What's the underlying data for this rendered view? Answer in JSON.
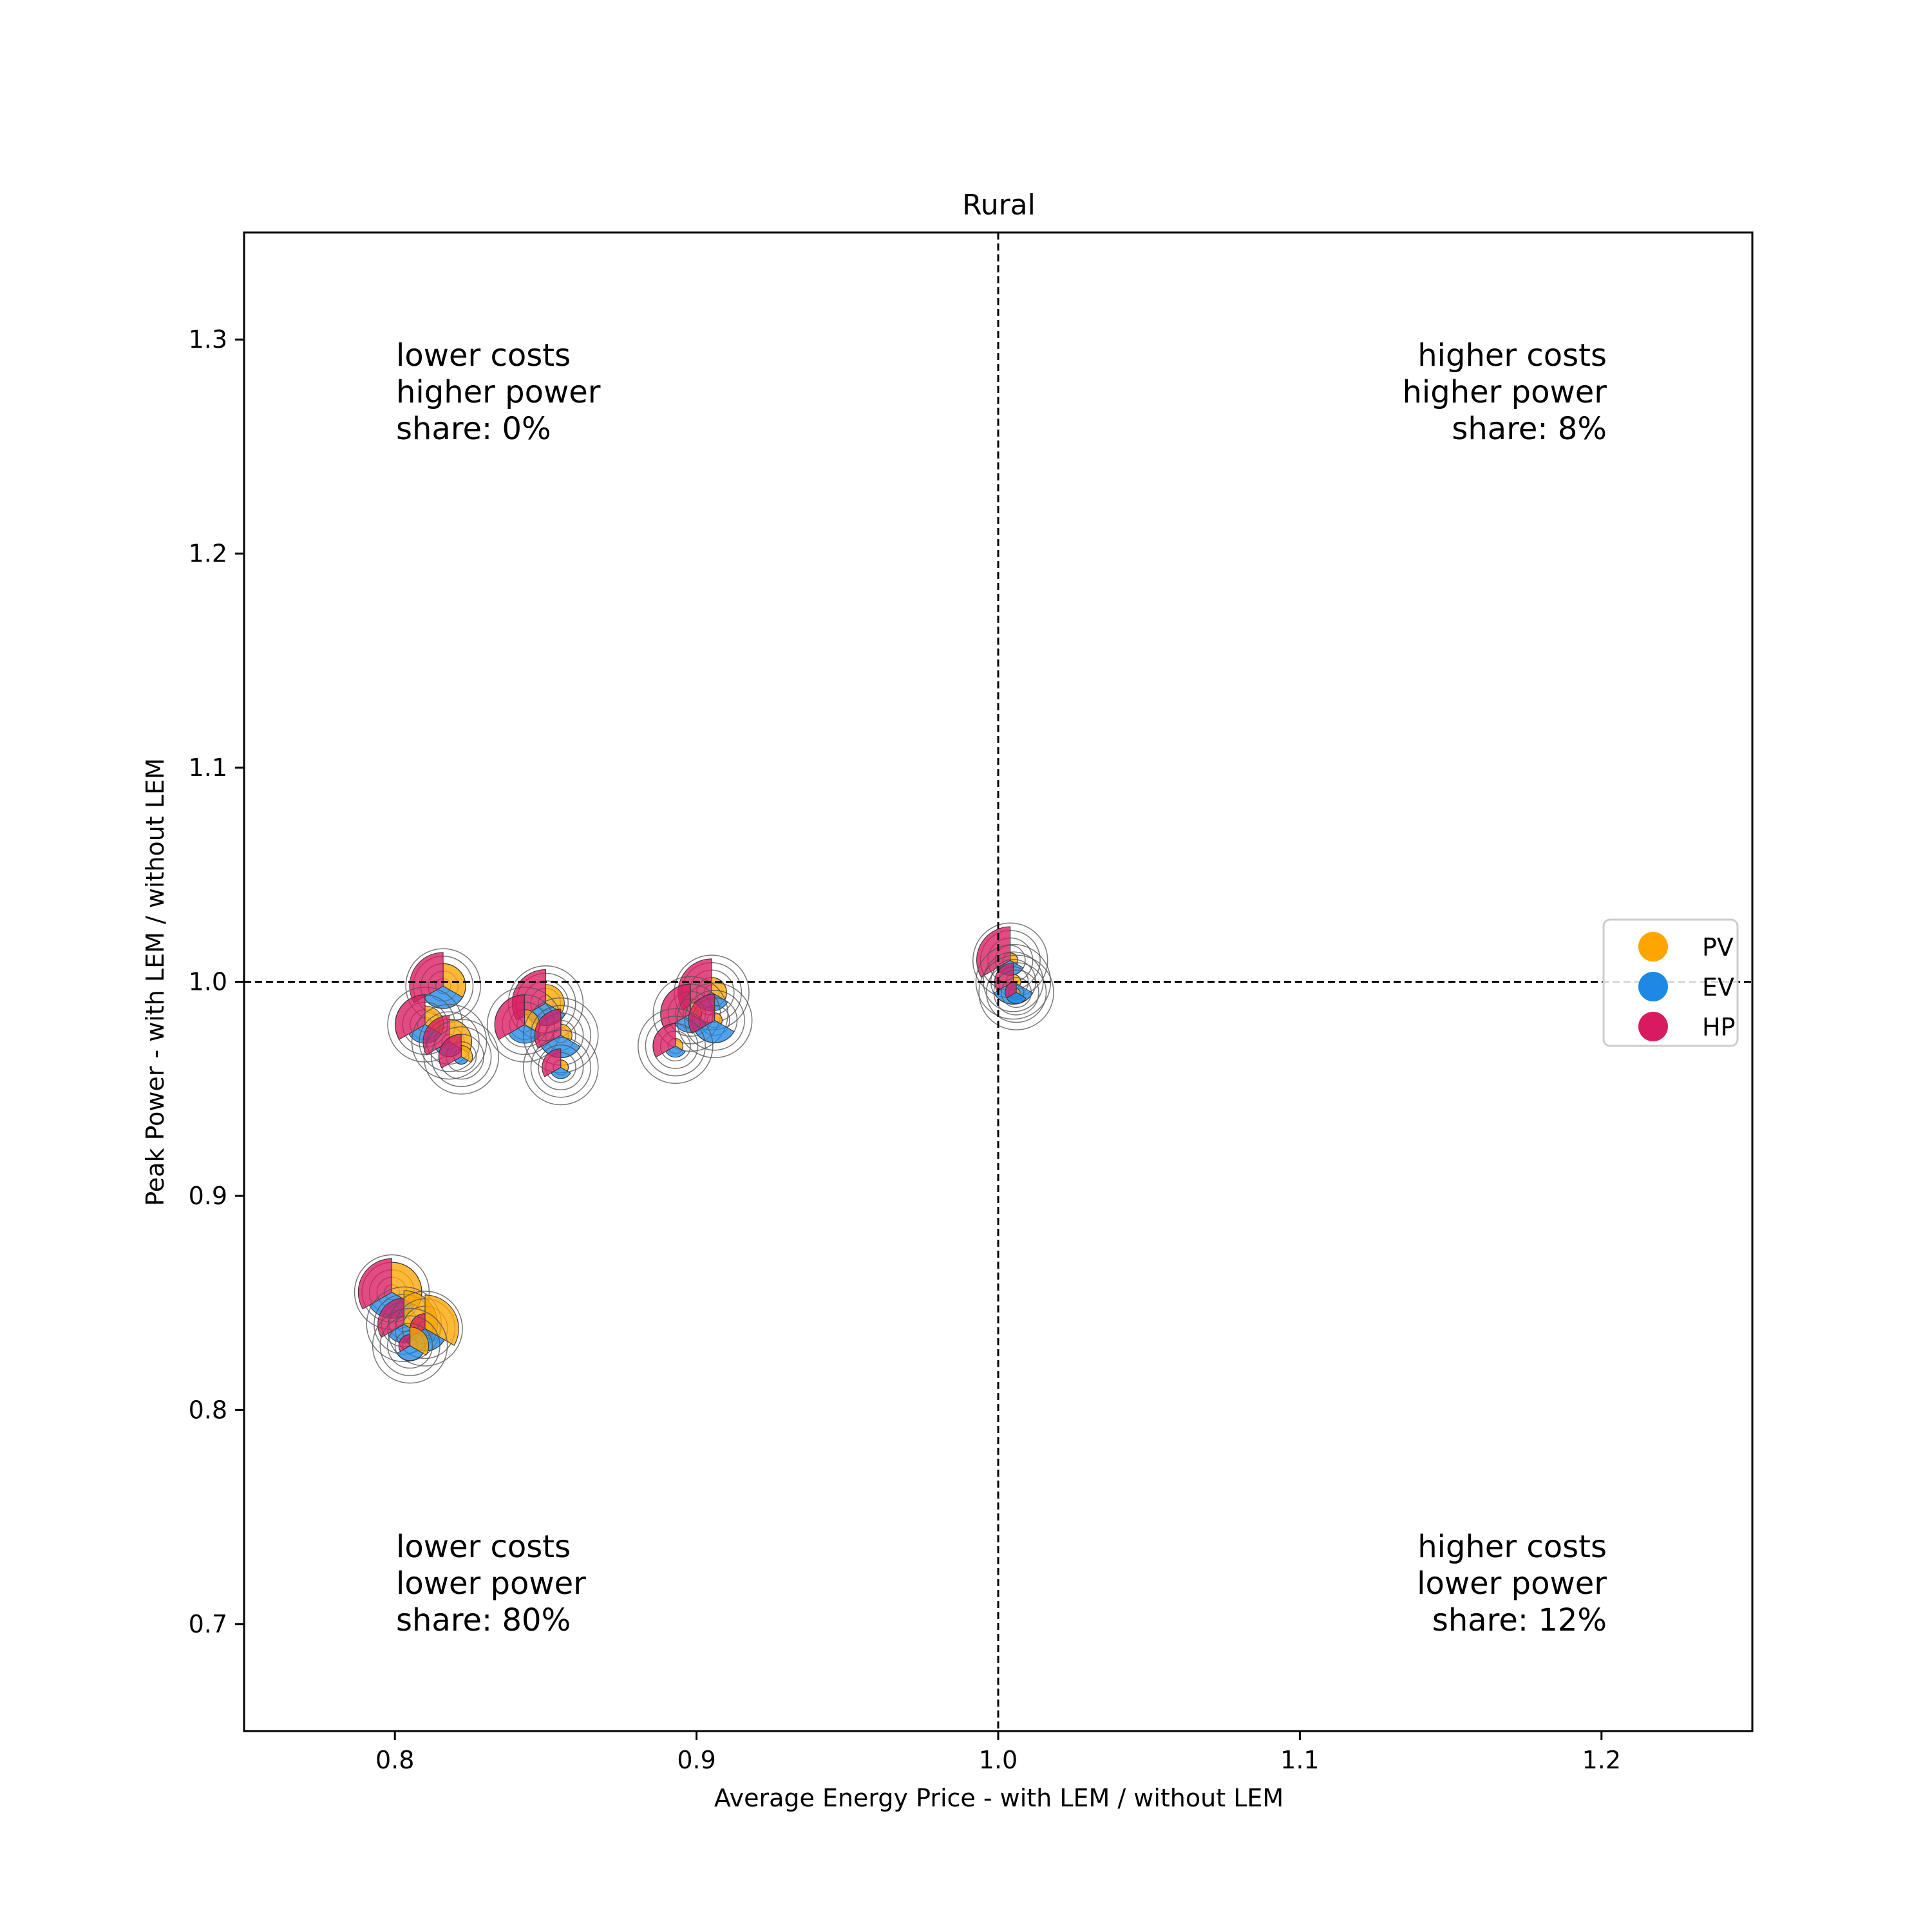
{
  "chart_data": {
    "type": "scatter",
    "title": "Rural",
    "xlabel": "Average Energy Price - with LEM / without LEM",
    "ylabel": "Peak Power - with LEM / without LEM",
    "xlim": [
      0.75,
      1.25
    ],
    "ylim": [
      0.65,
      1.35
    ],
    "xticks": [
      0.8,
      0.9,
      1.0,
      1.1,
      1.2
    ],
    "xtick_labels": [
      "0.8",
      "0.9",
      "1.0",
      "1.1",
      "1.2"
    ],
    "yticks": [
      0.7,
      0.8,
      0.9,
      1.0,
      1.1,
      1.2,
      1.3
    ],
    "ytick_labels": [
      "0.7",
      "0.8",
      "0.9",
      "1.0",
      "1.1",
      "1.2",
      "1.3"
    ],
    "reference_lines": {
      "x": 1.0,
      "y": 1.0,
      "style": "dashed"
    },
    "grid": false,
    "legend_position": "right",
    "legend": [
      {
        "name": "PV",
        "color": "#FFA500"
      },
      {
        "name": "EV",
        "color": "#1E88E5"
      },
      {
        "name": "HP",
        "color": "#D81B60"
      }
    ],
    "quadrant_annotations": [
      {
        "position": "top-left",
        "lines": [
          "lower costs",
          "higher power",
          "share: 0%"
        ]
      },
      {
        "position": "top-right",
        "lines": [
          "higher costs",
          "higher power",
          "share: 8%"
        ]
      },
      {
        "position": "bottom-left",
        "lines": [
          "lower costs",
          "lower power",
          "share: 80%"
        ]
      },
      {
        "position": "bottom-right",
        "lines": [
          "higher costs",
          "lower power",
          "share: 12%"
        ]
      }
    ],
    "points": [
      {
        "x": 0.816,
        "y": 0.998,
        "pv": 0.6,
        "ev": 0.6,
        "hp": 0.9
      },
      {
        "x": 0.81,
        "y": 0.98,
        "pv": 0.5,
        "ev": 0.5,
        "hp": 0.8
      },
      {
        "x": 0.818,
        "y": 0.972,
        "pv": 0.6,
        "ev": 0.4,
        "hp": 0.7
      },
      {
        "x": 0.822,
        "y": 0.965,
        "pv": 0.3,
        "ev": 0.2,
        "hp": 0.6
      },
      {
        "x": 0.85,
        "y": 0.99,
        "pv": 0.5,
        "ev": 0.6,
        "hp": 0.9
      },
      {
        "x": 0.843,
        "y": 0.98,
        "pv": 0.4,
        "ev": 0.5,
        "hp": 0.8
      },
      {
        "x": 0.855,
        "y": 0.975,
        "pv": 0.3,
        "ev": 0.6,
        "hp": 0.7
      },
      {
        "x": 0.855,
        "y": 0.96,
        "pv": 0.2,
        "ev": 0.3,
        "hp": 0.5
      },
      {
        "x": 0.905,
        "y": 0.995,
        "pv": 0.4,
        "ev": 0.5,
        "hp": 0.9
      },
      {
        "x": 0.898,
        "y": 0.985,
        "pv": 0.3,
        "ev": 0.5,
        "hp": 0.8
      },
      {
        "x": 0.906,
        "y": 0.982,
        "pv": 0.2,
        "ev": 0.6,
        "hp": 0.7
      },
      {
        "x": 0.893,
        "y": 0.97,
        "pv": 0.2,
        "ev": 0.3,
        "hp": 0.6
      },
      {
        "x": 1.004,
        "y": 1.01,
        "pv": 0.2,
        "ev": 0.4,
        "hp": 0.9
      },
      {
        "x": 1.005,
        "y": 1.0,
        "pv": 0.2,
        "ev": 0.6,
        "hp": 0.5
      },
      {
        "x": 1.006,
        "y": 0.995,
        "pv": 0.1,
        "ev": 0.3,
        "hp": 0.3
      },
      {
        "x": 0.799,
        "y": 0.855,
        "pv": 0.8,
        "ev": 0.7,
        "hp": 0.9
      },
      {
        "x": 0.803,
        "y": 0.84,
        "pv": 0.9,
        "ev": 0.5,
        "hp": 0.7
      },
      {
        "x": 0.81,
        "y": 0.838,
        "pv": 0.9,
        "ev": 0.6,
        "hp": 0.4
      },
      {
        "x": 0.805,
        "y": 0.83,
        "pv": 0.5,
        "ev": 0.4,
        "hp": 0.3
      }
    ]
  }
}
